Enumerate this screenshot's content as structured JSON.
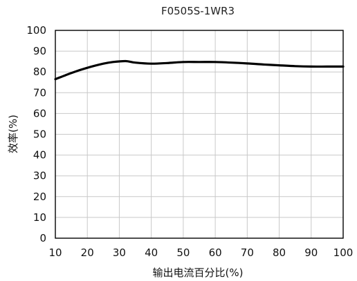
{
  "chart_data": {
    "type": "line",
    "title": "F0505S-1WR3",
    "xlabel": "输出电流百分比(%)",
    "ylabel": "效率(%)",
    "xlim": [
      10,
      100
    ],
    "ylim": [
      0,
      100
    ],
    "xticks": [
      10,
      20,
      30,
      40,
      50,
      60,
      70,
      80,
      90,
      100
    ],
    "yticks": [
      0,
      10,
      20,
      30,
      40,
      50,
      60,
      70,
      80,
      90,
      100
    ],
    "grid": true,
    "series": [
      {
        "x": [
          10,
          15,
          20,
          25,
          28,
          32,
          35,
          40,
          45,
          50,
          55,
          60,
          65,
          70,
          75,
          80,
          85,
          90,
          95,
          100
        ],
        "y": [
          76.5,
          79.5,
          82,
          84,
          84.8,
          85.2,
          84.5,
          84,
          84.3,
          84.8,
          84.8,
          84.8,
          84.5,
          84.1,
          83.6,
          83.2,
          82.8,
          82.6,
          82.6,
          82.6
        ]
      }
    ]
  }
}
